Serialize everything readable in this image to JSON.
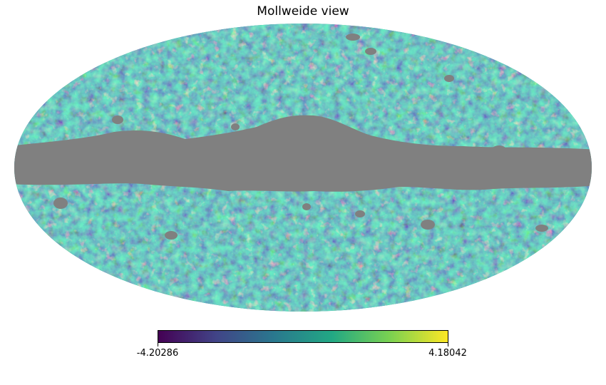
{
  "title": "Mollweide view",
  "colorbar": {
    "min_label": "-4.20286",
    "max_label": "4.18042",
    "min_value": -4.20286,
    "max_value": 4.18042,
    "colormap": "viridis",
    "colors": [
      "#440154",
      "#414487",
      "#2a788e",
      "#22a884",
      "#7ad151",
      "#fde725"
    ]
  },
  "map": {
    "projection": "Mollweide",
    "masked_color": "#808080",
    "masked_region": "galactic plane band"
  }
}
